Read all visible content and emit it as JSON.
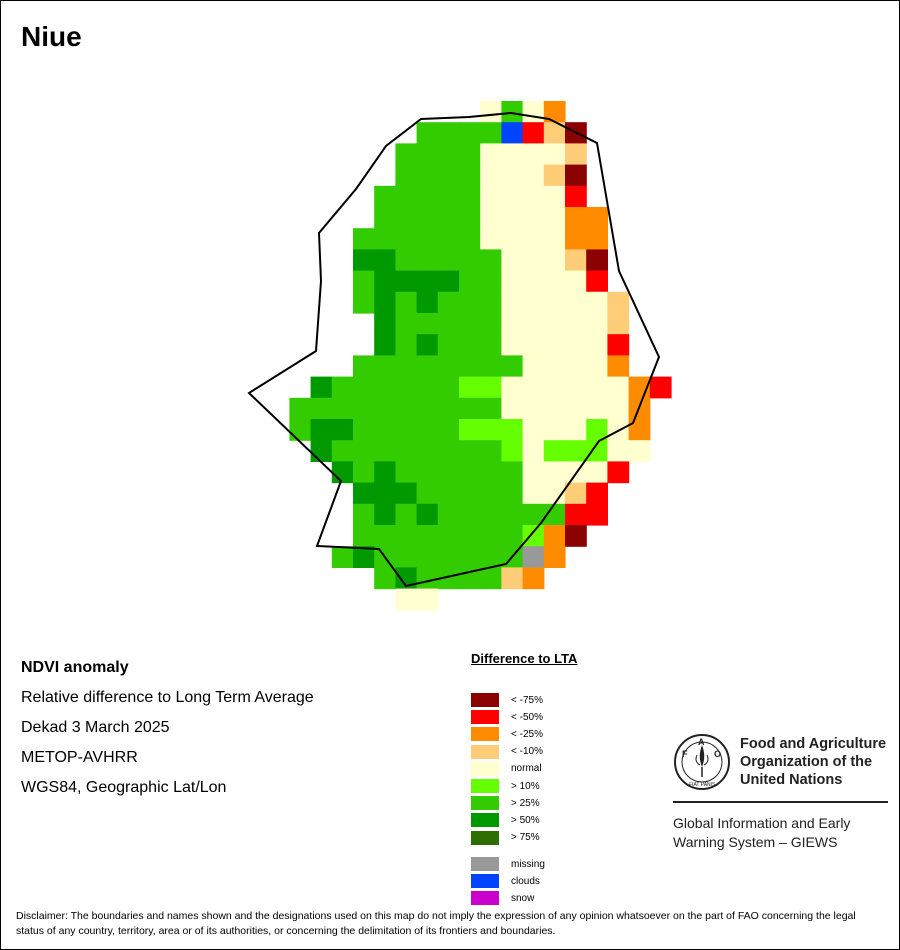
{
  "title": "Niue",
  "info": {
    "line1": "NDVI anomaly",
    "line2": "Relative difference to Long Term Average",
    "line3": "Dekad 3 March 2025",
    "line4": "METOP-AVHRR",
    "line5": "WGS84, Geographic Lat/Lon"
  },
  "legend": {
    "title": "Difference to LTA",
    "items": [
      {
        "label": "< -75%",
        "color": "#8B0000"
      },
      {
        "label": "< -50%",
        "color": "#FF0000"
      },
      {
        "label": "< -25%",
        "color": "#FF8C00"
      },
      {
        "label": "< -10%",
        "color": "#FFCC77"
      },
      {
        "label": "normal",
        "color": "#FFFFD0"
      },
      {
        "label": "> 10%",
        "color": "#66FF00"
      },
      {
        "label": "> 25%",
        "color": "#33CC00"
      },
      {
        "label": "> 50%",
        "color": "#009900"
      },
      {
        "label": "> 75%",
        "color": "#2D6E00"
      }
    ],
    "extra": [
      {
        "label": "missing",
        "color": "#999999"
      },
      {
        "label": "clouds",
        "color": "#0044FF"
      },
      {
        "label": "snow",
        "color": "#CC00CC"
      }
    ]
  },
  "org": {
    "name_line1": "Food and Agriculture",
    "name_line2": "Organization of the",
    "name_line3": "United Nations",
    "logo_letters": "FAO",
    "logo_motto": "FIAT PANIS",
    "giews_line1": "Global Information and Early",
    "giews_line2": "Warning System – GIEWS"
  },
  "disclaimer": "Disclaimer: The boundaries and names shown and the designations used on this map do not imply the expression of any opinion whatsoever on the part of FAO concerning the legal status of any country, territory, area or of its authorities, or concerning the delimitation of its frontiers and boundaries."
}
